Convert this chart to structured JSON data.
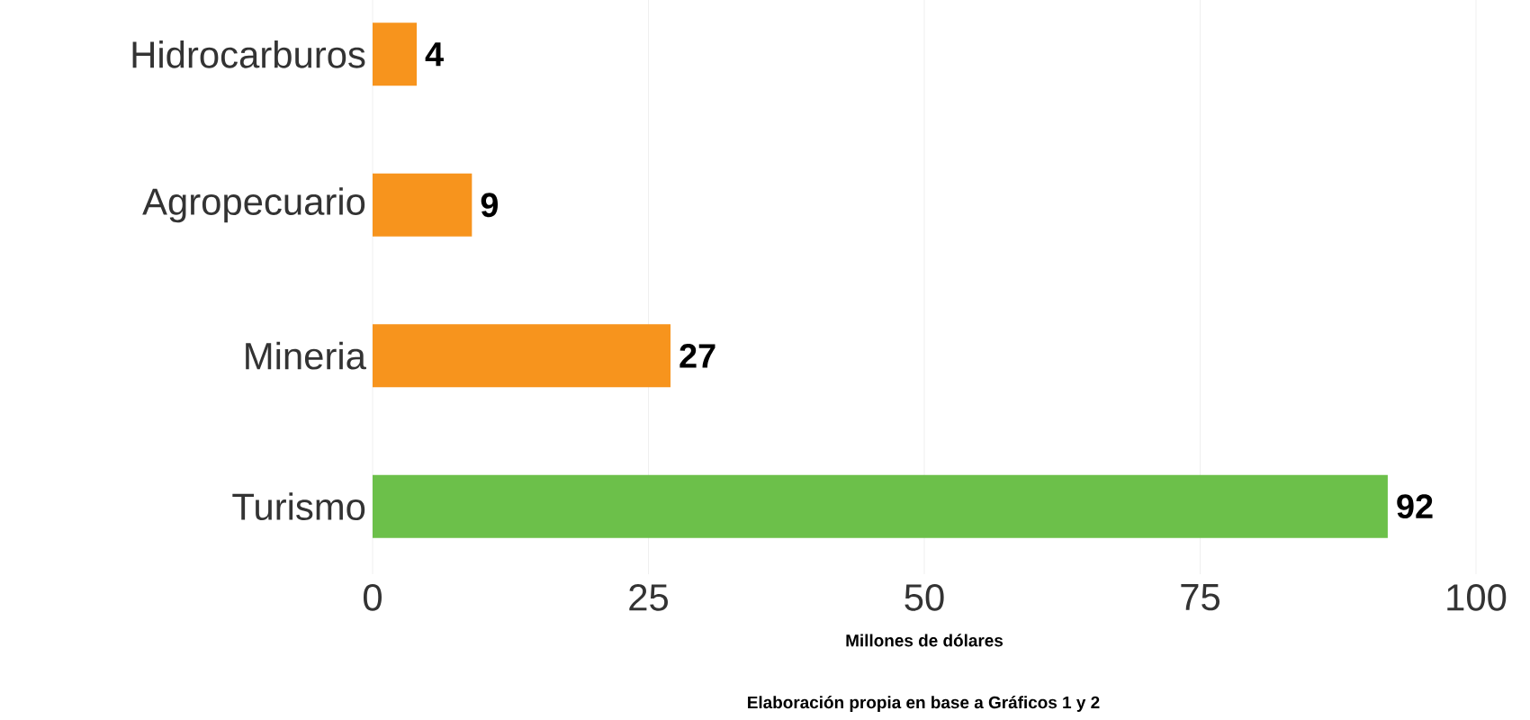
{
  "chart_data": {
    "type": "bar",
    "orientation": "horizontal",
    "categories": [
      "Hidrocarburos",
      "Agropecuario",
      "Mineria",
      "Turismo"
    ],
    "values": [
      4,
      9,
      27,
      92
    ],
    "colors": [
      "#f7941d",
      "#f7941d",
      "#f7941d",
      "#6cc04a"
    ],
    "xlim": [
      0,
      100
    ],
    "xticks": [
      0,
      25,
      50,
      75,
      100
    ],
    "grid": "x",
    "data_labels": true,
    "xlabel": "Millones de dólares",
    "annotations": [
      "Elaboración propia en base a Gráficos 1 y 2"
    ]
  }
}
